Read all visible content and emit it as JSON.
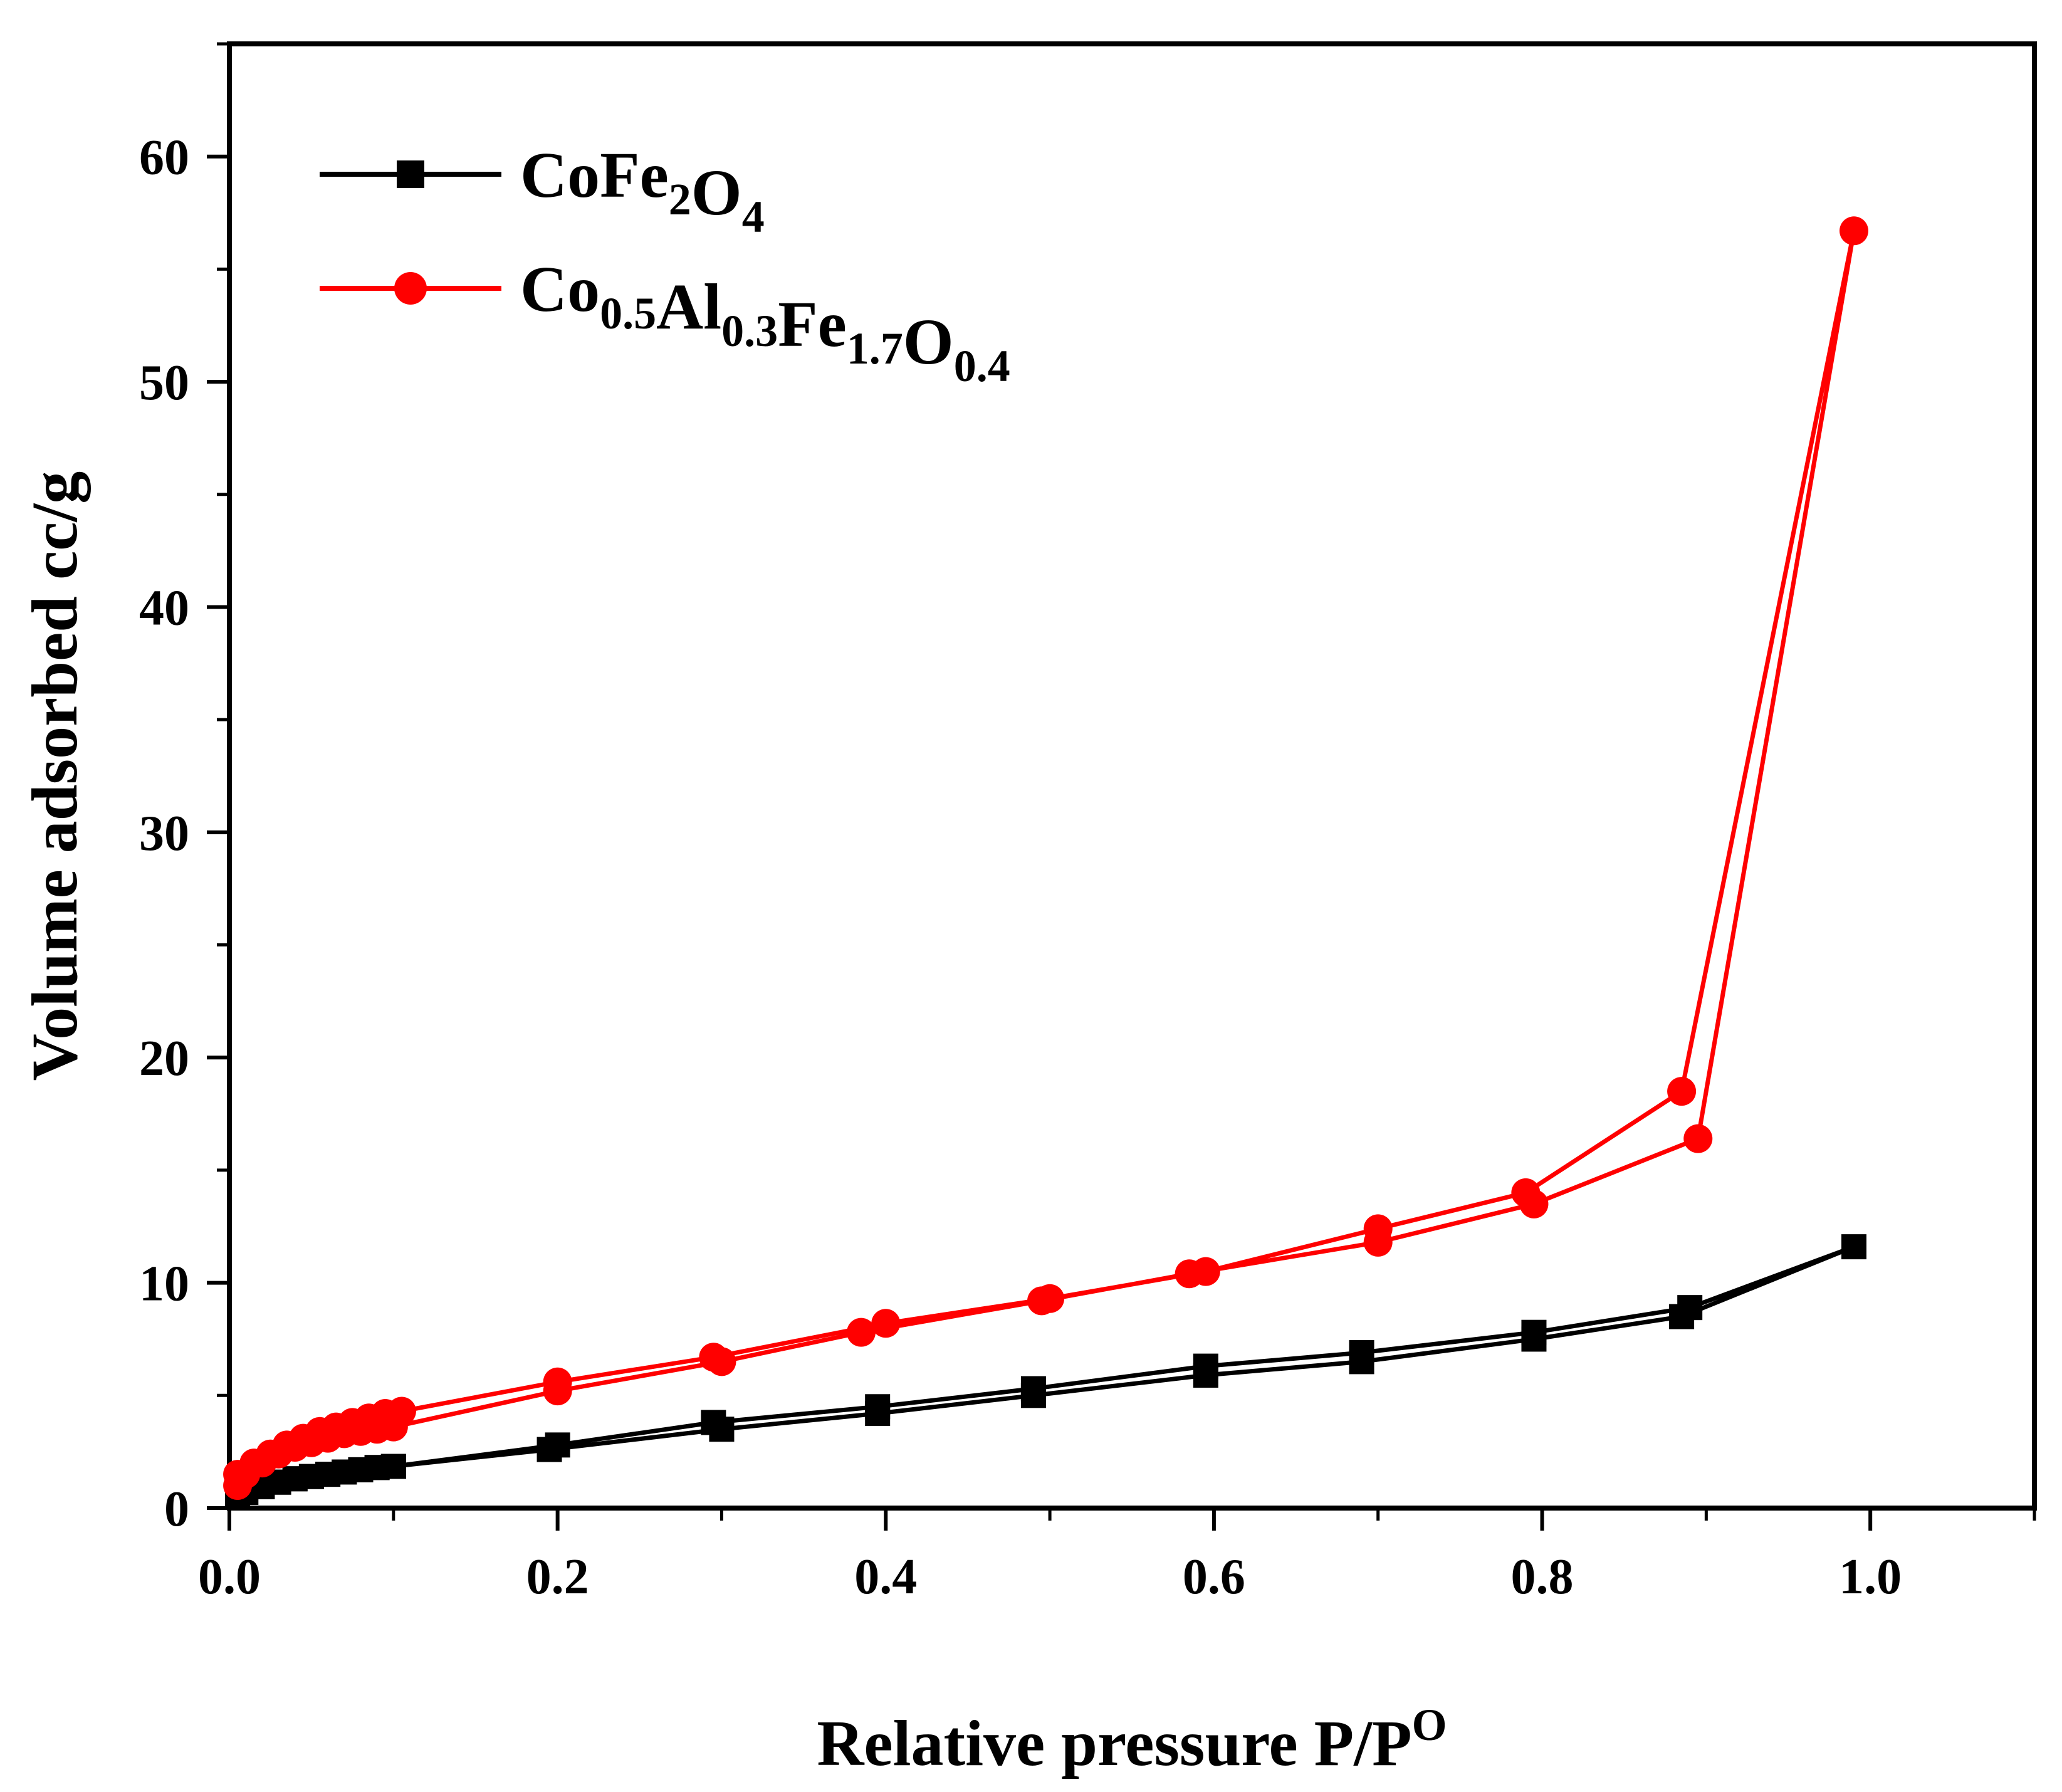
{
  "chart_data": {
    "type": "line",
    "title": "",
    "xlabel": "Relative pressure P/P",
    "xlabel_sup": "O",
    "ylabel": "Volume adsorbed cc/g",
    "xlim": [
      0,
      1.1
    ],
    "ylim": [
      0,
      65
    ],
    "xticks": [
      0.0,
      0.2,
      0.4,
      0.6,
      0.8,
      1.0
    ],
    "xtick_labels": [
      "0.0",
      "0.2",
      "0.4",
      "0.6",
      "0.8",
      "1.0"
    ],
    "yticks": [
      0,
      10,
      20,
      30,
      40,
      50,
      60
    ],
    "ytick_labels": [
      "0",
      "10",
      "20",
      "30",
      "40",
      "50",
      "60"
    ],
    "legend_position": "top-left",
    "series": [
      {
        "name": "CoFe2O4",
        "name_parts": [
          {
            "t": "CoFe"
          },
          {
            "t": "2",
            "sub": true
          },
          {
            "t": "O"
          },
          {
            "t": "4",
            "sub": true
          }
        ],
        "color": "#000000",
        "marker": "square",
        "x": [
          0.005,
          0.01,
          0.02,
          0.03,
          0.04,
          0.05,
          0.06,
          0.07,
          0.08,
          0.09,
          0.1,
          0.195,
          0.3,
          0.395,
          0.49,
          0.595,
          0.69,
          0.795,
          0.885,
          0.99,
          0.89,
          0.795,
          0.69,
          0.595,
          0.49,
          0.395,
          0.295,
          0.2,
          0.1,
          0.09,
          0.08,
          0.07,
          0.06,
          0.05,
          0.04,
          0.03,
          0.02,
          0.01
        ],
        "y": [
          0.5,
          0.7,
          0.95,
          1.15,
          1.3,
          1.4,
          1.5,
          1.6,
          1.7,
          1.8,
          1.85,
          2.6,
          3.5,
          4.2,
          5.0,
          5.9,
          6.5,
          7.5,
          8.5,
          11.6,
          8.9,
          7.8,
          6.9,
          6.3,
          5.3,
          4.5,
          3.8,
          2.8,
          1.85,
          1.8,
          1.7,
          1.6,
          1.5,
          1.4,
          1.3,
          1.15,
          0.95,
          0.7
        ]
      },
      {
        "name": "Co0.5Al0.3Fe1.7O0.4",
        "name_parts": [
          {
            "t": "Co"
          },
          {
            "t": "0.5",
            "sub": true
          },
          {
            "t": "Al"
          },
          {
            "t": "0.3",
            "sub": true
          },
          {
            "t": "Fe"
          },
          {
            "t": "1.7",
            "sub": true
          },
          {
            "t": "O"
          },
          {
            "t": "0.4",
            "sub": true
          }
        ],
        "color": "#ff0000",
        "marker": "circle",
        "x": [
          0.005,
          0.01,
          0.02,
          0.03,
          0.04,
          0.05,
          0.06,
          0.07,
          0.08,
          0.09,
          0.1,
          0.2,
          0.3,
          0.385,
          0.495,
          0.585,
          0.7,
          0.795,
          0.895,
          0.99,
          0.885,
          0.79,
          0.7,
          0.595,
          0.5,
          0.4,
          0.295,
          0.2,
          0.105,
          0.095,
          0.085,
          0.075,
          0.065,
          0.055,
          0.045,
          0.035,
          0.025,
          0.015,
          0.005
        ],
        "y": [
          1.0,
          1.5,
          2.0,
          2.4,
          2.7,
          2.9,
          3.1,
          3.3,
          3.4,
          3.5,
          3.6,
          5.2,
          6.5,
          7.8,
          9.2,
          10.4,
          11.8,
          13.5,
          16.4,
          56.7,
          18.5,
          14.0,
          12.4,
          10.5,
          9.3,
          8.2,
          6.7,
          5.6,
          4.3,
          4.2,
          4.0,
          3.8,
          3.6,
          3.4,
          3.1,
          2.8,
          2.4,
          2.0,
          1.5
        ]
      }
    ]
  }
}
